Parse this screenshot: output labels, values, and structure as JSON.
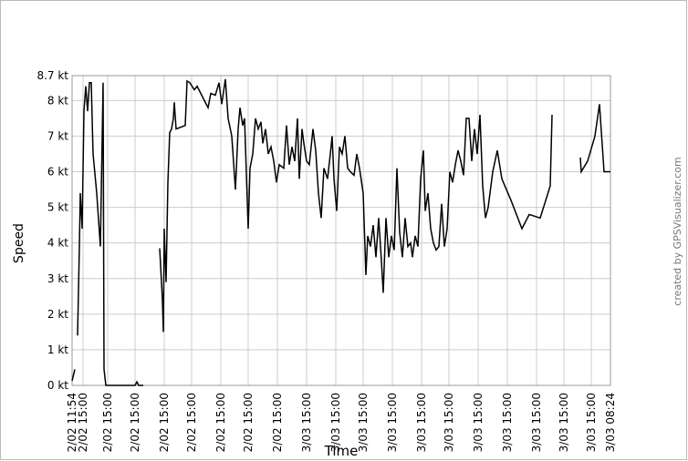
{
  "chart_data": {
    "type": "line",
    "y_label": "Speed",
    "x_label": "Time",
    "credit": "created by GPSVisualizer.com",
    "grid": true,
    "ylim": [
      0,
      8.7
    ],
    "yticks": [
      {
        "value": 0,
        "label": "0 kt"
      },
      {
        "value": 1,
        "label": "1 kt"
      },
      {
        "value": 2,
        "label": "2 kt"
      },
      {
        "value": 3,
        "label": "3 kt"
      },
      {
        "value": 4,
        "label": "4 kt"
      },
      {
        "value": 5,
        "label": "5 kt"
      },
      {
        "value": 6,
        "label": "6 kt"
      },
      {
        "value": 7,
        "label": "7 kt"
      },
      {
        "value": 8,
        "label": "8 kt"
      },
      {
        "value": 8.7,
        "label": "8.7 kt"
      }
    ],
    "xlim": [
      0,
      590
    ],
    "xticks": [
      {
        "value": 0,
        "label": "2/02 11:54"
      },
      {
        "value": 12,
        "label": "2/02 15:00"
      },
      {
        "value": 39,
        "label": "2/02 15:00"
      },
      {
        "value": 69,
        "label": "2/02 15:00"
      },
      {
        "value": 101,
        "label": "2/02 15:00"
      },
      {
        "value": 131,
        "label": "2/02 15:00"
      },
      {
        "value": 163,
        "label": "2/02 15:00"
      },
      {
        "value": 193,
        "label": "2/02 15:00"
      },
      {
        "value": 225,
        "label": "2/02 15:00"
      },
      {
        "value": 257,
        "label": "3/03 15:00"
      },
      {
        "value": 289,
        "label": "3/03 15:00"
      },
      {
        "value": 319,
        "label": "3/03 15:00"
      },
      {
        "value": 351,
        "label": "3/03 15:00"
      },
      {
        "value": 383,
        "label": "3/03 15:00"
      },
      {
        "value": 413,
        "label": "3/03 15:00"
      },
      {
        "value": 445,
        "label": "3/03 15:00"
      },
      {
        "value": 477,
        "label": "3/03 15:00"
      },
      {
        "value": 509,
        "label": "3/03 15:00"
      },
      {
        "value": 539,
        "label": "3/03 15:00"
      },
      {
        "value": 569,
        "label": "3/03 15:00"
      },
      {
        "value": 590,
        "label": "3/03 08:24"
      }
    ],
    "series": [
      {
        "color": "#000000",
        "x": [
          0,
          3,
          4.5,
          6,
          8,
          9,
          11,
          13,
          15,
          17,
          19,
          21,
          23,
          27,
          31,
          34,
          35,
          37,
          69,
          71,
          73,
          78,
          87,
          96,
          99,
          100,
          101,
          103,
          105,
          107,
          109,
          111,
          112,
          114,
          124,
          126,
          129,
          134,
          137,
          141,
          149,
          152,
          157,
          161,
          164,
          168,
          171,
          175,
          179,
          182,
          184,
          187,
          189,
          193,
          195,
          198,
          201,
          204,
          207,
          209,
          212,
          215,
          218,
          221,
          224,
          227,
          232,
          235,
          238,
          241,
          244,
          247,
          249,
          252,
          254,
          257,
          260,
          264,
          267,
          270,
          273,
          276,
          280,
          283,
          285,
          287,
          290,
          293,
          296,
          299,
          302,
          305,
          309,
          312,
          315,
          319,
          322,
          324,
          327,
          330,
          333,
          336,
          339,
          341,
          344,
          347,
          350,
          353,
          356,
          359,
          362,
          365,
          368,
          371,
          373,
          376,
          379,
          382,
          385,
          387,
          390,
          393,
          396,
          399,
          402,
          405,
          408,
          411,
          414,
          417,
          420,
          423,
          426,
          429,
          432,
          435,
          438,
          441,
          444,
          447,
          450,
          453,
          456,
          461,
          466,
          471,
          481,
          493,
          501,
          513,
          524,
          526,
          541,
          557,
          558,
          565,
          573,
          578,
          583,
          590
        ],
        "values": [
          0.13,
          0.45,
          null,
          1.4,
          3.9,
          5.4,
          4.4,
          7.7,
          8.4,
          7.7,
          8.5,
          8.5,
          6.5,
          5.4,
          3.9,
          8.5,
          0.45,
          0,
          0,
          0.1,
          0,
          0,
          null,
          3.85,
          2.4,
          1.5,
          4.4,
          2.9,
          5.7,
          7.1,
          7.2,
          7.5,
          7.95,
          7.2,
          7.3,
          8.55,
          8.5,
          8.3,
          8.4,
          8.2,
          7.8,
          8.2,
          8.15,
          8.5,
          7.9,
          8.6,
          7.5,
          7.0,
          5.5,
          7.2,
          7.8,
          7.3,
          7.5,
          4.4,
          6.1,
          6.5,
          7.5,
          7.2,
          7.4,
          6.8,
          7.2,
          6.5,
          6.7,
          6.3,
          5.7,
          6.2,
          6.1,
          7.3,
          6.2,
          6.7,
          6.3,
          7.5,
          5.8,
          7.2,
          6.8,
          6.3,
          6.2,
          7.2,
          6.6,
          5.4,
          4.7,
          6.1,
          5.8,
          6.5,
          7.0,
          5.8,
          4.9,
          6.7,
          6.5,
          7.0,
          6.1,
          6.0,
          5.9,
          6.5,
          6.1,
          5.4,
          3.1,
          4.2,
          3.9,
          4.5,
          3.6,
          4.7,
          3.5,
          2.6,
          4.7,
          3.6,
          4.2,
          3.8,
          6.1,
          4.3,
          3.6,
          4.7,
          3.9,
          4.0,
          3.6,
          4.2,
          3.9,
          5.8,
          6.6,
          4.9,
          5.4,
          4.4,
          4.0,
          3.8,
          3.9,
          5.1,
          3.9,
          4.4,
          6.0,
          5.7,
          6.2,
          6.6,
          6.3,
          5.9,
          7.5,
          7.5,
          6.3,
          7.2,
          6.5,
          7.6,
          5.6,
          4.7,
          5.0,
          6.0,
          6.6,
          5.8,
          5.2,
          4.4,
          4.8,
          4.7,
          5.6,
          7.6,
          null,
          6.4,
          6.0,
          6.3,
          7.0,
          7.9,
          6.0,
          6.0
        ]
      }
    ]
  }
}
